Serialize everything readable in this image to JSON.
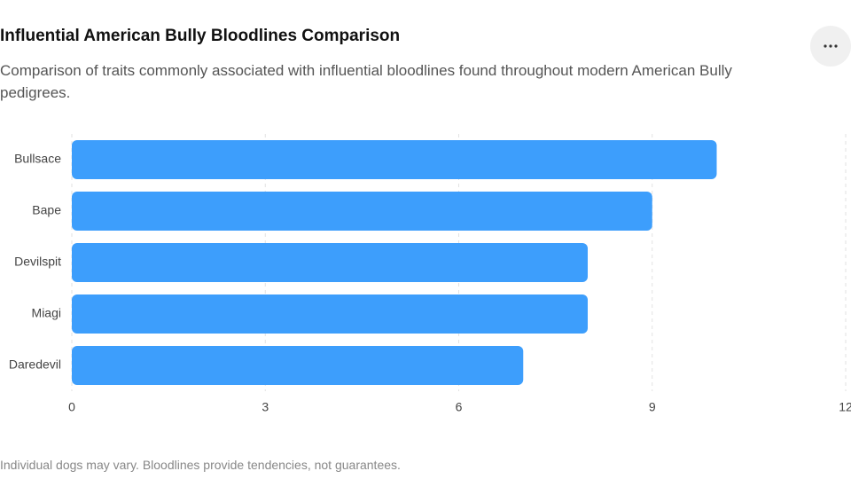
{
  "chart_data": {
    "type": "bar",
    "orientation": "horizontal",
    "title": "Influential American Bully Bloodlines Comparison",
    "subtitle": "Comparison of traits commonly associated with influential bloodlines found throughout modern American Bully pedigrees.",
    "footnote": "Individual dogs may vary. Bloodlines provide tendencies, not guarantees.",
    "categories": [
      "Bullsace",
      "Bape",
      "Devilspit",
      "Miagi",
      "Daredevil"
    ],
    "values": [
      10,
      9,
      8,
      8,
      7
    ],
    "color": "#3d9efc",
    "xlim": [
      0,
      12
    ],
    "xticks": [
      0,
      3,
      6,
      9,
      12
    ],
    "grid": true
  }
}
